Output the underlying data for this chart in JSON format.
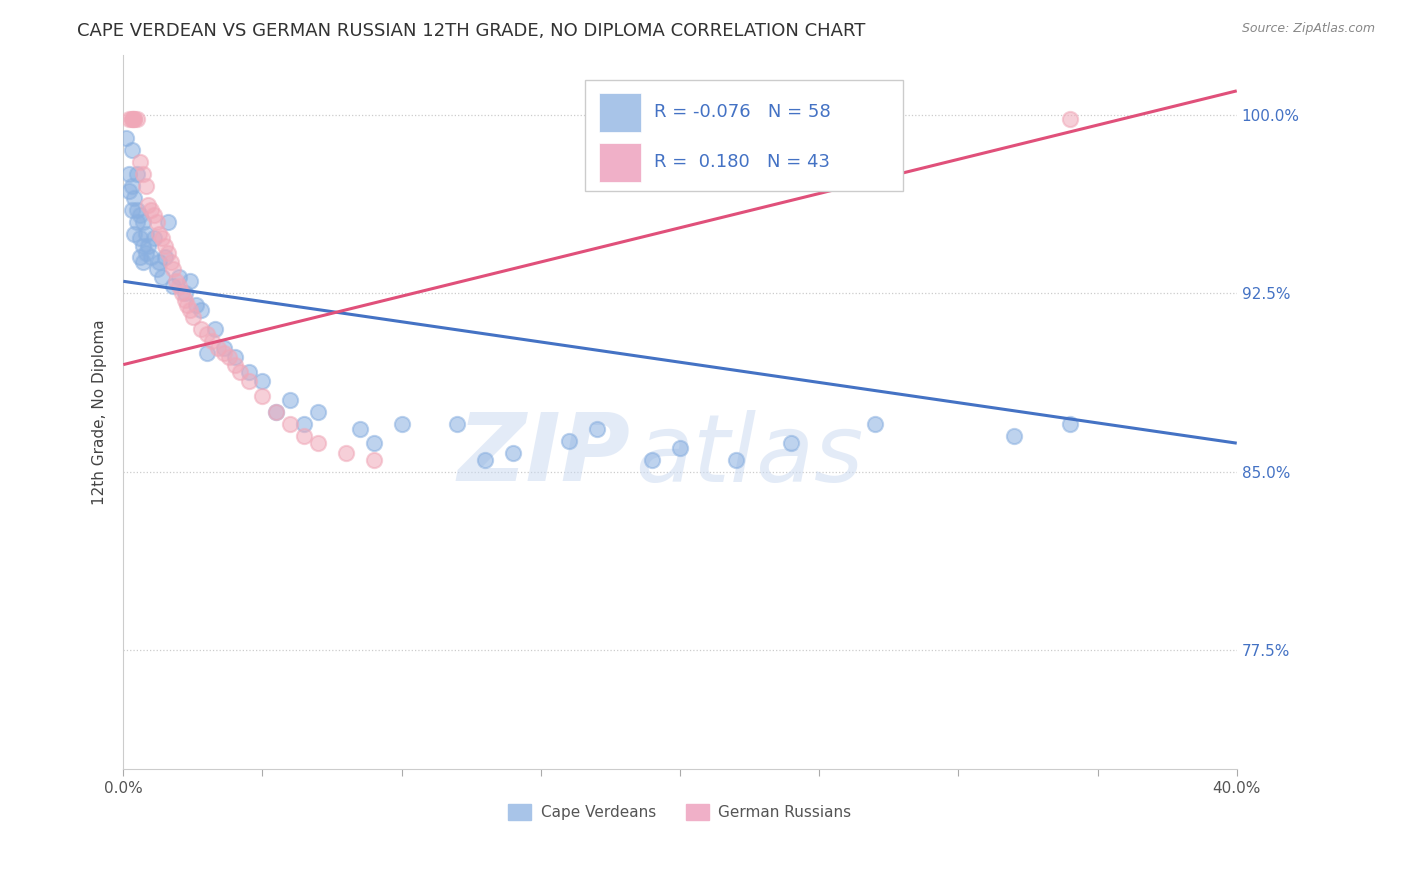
{
  "title": "CAPE VERDEAN VS GERMAN RUSSIAN 12TH GRADE, NO DIPLOMA CORRELATION CHART",
  "source": "Source: ZipAtlas.com",
  "ylabel": "12th Grade, No Diploma",
  "yticks": [
    0.775,
    0.85,
    0.925,
    1.0
  ],
  "ytick_labels": [
    "77.5%",
    "85.0%",
    "92.5%",
    "100.0%"
  ],
  "xmin": 0.0,
  "xmax": 0.4,
  "ymin": 0.725,
  "ymax": 1.025,
  "watermark_zip": "ZIP",
  "watermark_atlas": "atlas",
  "cape_verdean_color": "#8ab0e0",
  "german_russian_color": "#f0a8b8",
  "cape_verdean_scatter": [
    [
      0.001,
      0.99
    ],
    [
      0.002,
      0.975
    ],
    [
      0.002,
      0.968
    ],
    [
      0.003,
      0.985
    ],
    [
      0.003,
      0.96
    ],
    [
      0.003,
      0.97
    ],
    [
      0.004,
      0.965
    ],
    [
      0.004,
      0.95
    ],
    [
      0.005,
      0.975
    ],
    [
      0.005,
      0.96
    ],
    [
      0.005,
      0.955
    ],
    [
      0.006,
      0.958
    ],
    [
      0.006,
      0.948
    ],
    [
      0.006,
      0.94
    ],
    [
      0.007,
      0.955
    ],
    [
      0.007,
      0.945
    ],
    [
      0.007,
      0.938
    ],
    [
      0.008,
      0.95
    ],
    [
      0.008,
      0.942
    ],
    [
      0.009,
      0.945
    ],
    [
      0.01,
      0.94
    ],
    [
      0.011,
      0.948
    ],
    [
      0.012,
      0.935
    ],
    [
      0.013,
      0.938
    ],
    [
      0.014,
      0.932
    ],
    [
      0.015,
      0.94
    ],
    [
      0.016,
      0.955
    ],
    [
      0.018,
      0.928
    ],
    [
      0.02,
      0.932
    ],
    [
      0.022,
      0.925
    ],
    [
      0.024,
      0.93
    ],
    [
      0.026,
      0.92
    ],
    [
      0.028,
      0.918
    ],
    [
      0.03,
      0.9
    ],
    [
      0.033,
      0.91
    ],
    [
      0.036,
      0.902
    ],
    [
      0.04,
      0.898
    ],
    [
      0.045,
      0.892
    ],
    [
      0.05,
      0.888
    ],
    [
      0.055,
      0.875
    ],
    [
      0.06,
      0.88
    ],
    [
      0.065,
      0.87
    ],
    [
      0.07,
      0.875
    ],
    [
      0.085,
      0.868
    ],
    [
      0.09,
      0.862
    ],
    [
      0.1,
      0.87
    ],
    [
      0.12,
      0.87
    ],
    [
      0.13,
      0.855
    ],
    [
      0.14,
      0.858
    ],
    [
      0.16,
      0.863
    ],
    [
      0.17,
      0.868
    ],
    [
      0.19,
      0.855
    ],
    [
      0.2,
      0.86
    ],
    [
      0.22,
      0.855
    ],
    [
      0.24,
      0.862
    ],
    [
      0.27,
      0.87
    ],
    [
      0.32,
      0.865
    ],
    [
      0.34,
      0.87
    ]
  ],
  "german_russian_scatter": [
    [
      0.002,
      0.998
    ],
    [
      0.003,
      0.998
    ],
    [
      0.003,
      0.998
    ],
    [
      0.004,
      0.998
    ],
    [
      0.004,
      0.998
    ],
    [
      0.005,
      0.998
    ],
    [
      0.006,
      0.98
    ],
    [
      0.007,
      0.975
    ],
    [
      0.008,
      0.97
    ],
    [
      0.009,
      0.962
    ],
    [
      0.01,
      0.96
    ],
    [
      0.011,
      0.958
    ],
    [
      0.012,
      0.955
    ],
    [
      0.013,
      0.95
    ],
    [
      0.014,
      0.948
    ],
    [
      0.015,
      0.945
    ],
    [
      0.016,
      0.942
    ],
    [
      0.017,
      0.938
    ],
    [
      0.018,
      0.935
    ],
    [
      0.019,
      0.93
    ],
    [
      0.02,
      0.928
    ],
    [
      0.021,
      0.925
    ],
    [
      0.022,
      0.922
    ],
    [
      0.023,
      0.92
    ],
    [
      0.024,
      0.918
    ],
    [
      0.025,
      0.915
    ],
    [
      0.028,
      0.91
    ],
    [
      0.03,
      0.908
    ],
    [
      0.032,
      0.905
    ],
    [
      0.034,
      0.902
    ],
    [
      0.036,
      0.9
    ],
    [
      0.038,
      0.898
    ],
    [
      0.04,
      0.895
    ],
    [
      0.042,
      0.892
    ],
    [
      0.045,
      0.888
    ],
    [
      0.05,
      0.882
    ],
    [
      0.055,
      0.875
    ],
    [
      0.06,
      0.87
    ],
    [
      0.065,
      0.865
    ],
    [
      0.07,
      0.862
    ],
    [
      0.08,
      0.858
    ],
    [
      0.09,
      0.855
    ],
    [
      0.34,
      0.998
    ]
  ],
  "blue_line_x": [
    0.0,
    0.4
  ],
  "blue_line_y": [
    0.93,
    0.862
  ],
  "pink_line_x": [
    0.0,
    0.4
  ],
  "pink_line_y": [
    0.895,
    1.01
  ],
  "grid_color": "#cccccc",
  "background_color": "#ffffff",
  "title_fontsize": 13,
  "label_fontsize": 11,
  "tick_fontsize": 11,
  "scatter_size": 120,
  "scatter_alpha": 0.55,
  "line_width": 2.2
}
